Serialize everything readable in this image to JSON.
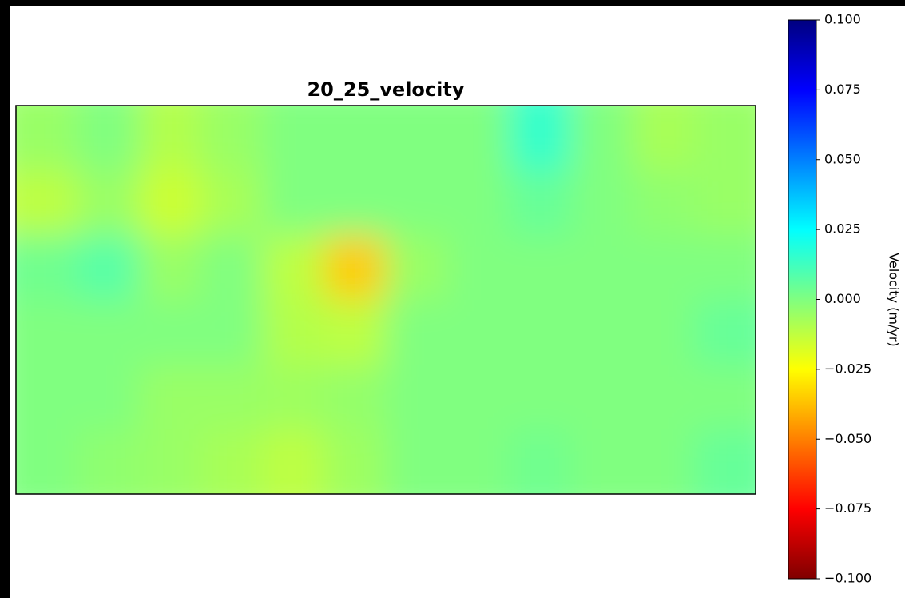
{
  "chart_data": {
    "type": "heatmap",
    "title": "20_25_velocity",
    "colorbar_label": "Velocity (m/yr)",
    "colormap": "jet_r",
    "clim": [
      -0.1,
      0.1
    ],
    "cticks": [
      {
        "value": 0.1,
        "label": "0.100"
      },
      {
        "value": 0.075,
        "label": "0.075"
      },
      {
        "value": 0.05,
        "label": "0.050"
      },
      {
        "value": 0.025,
        "label": "0.025"
      },
      {
        "value": 0,
        "label": "0.000"
      },
      {
        "value": -0.025,
        "label": "−0.025"
      },
      {
        "value": -0.05,
        "label": "−0.050"
      },
      {
        "value": -0.075,
        "label": "−0.075"
      },
      {
        "value": -0.1,
        "label": "−0.100"
      }
    ],
    "values": [
      [
        -0.005,
        0.0,
        -0.01,
        -0.005,
        0.0,
        0.0,
        0.0,
        0.0,
        0.015,
        0.0,
        -0.008,
        -0.005
      ],
      [
        -0.012,
        -0.005,
        -0.015,
        -0.008,
        0.0,
        0.0,
        0.0,
        0.0,
        0.005,
        0.0,
        -0.003,
        -0.005
      ],
      [
        0.003,
        0.008,
        -0.005,
        0.0,
        -0.012,
        -0.035,
        -0.005,
        0.0,
        0.0,
        0.0,
        0.0,
        0.0
      ],
      [
        0.0,
        0.0,
        0.0,
        0.0,
        -0.01,
        -0.012,
        0.0,
        0.0,
        0.0,
        0.0,
        0.0,
        0.005
      ],
      [
        0.0,
        0.0,
        -0.005,
        -0.005,
        -0.006,
        -0.004,
        0.0,
        0.0,
        0.0,
        0.0,
        0.0,
        0.0
      ],
      [
        0.0,
        -0.003,
        -0.005,
        -0.008,
        -0.012,
        -0.006,
        0.0,
        0.0,
        0.003,
        0.0,
        0.0,
        0.005
      ]
    ]
  }
}
